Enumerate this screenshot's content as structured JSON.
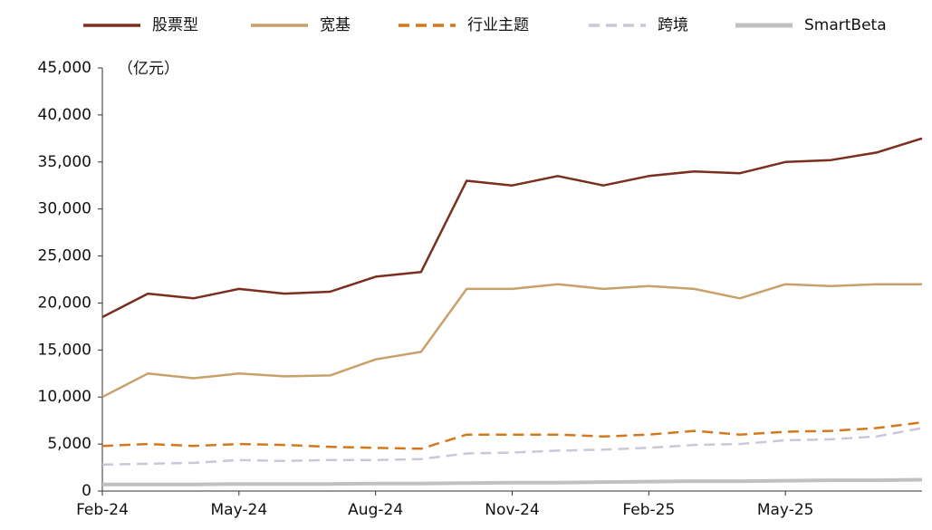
{
  "chart_data": {
    "type": "line",
    "y_unit": "（亿元）",
    "categories": [
      "Feb-24",
      null,
      null,
      "May-24",
      null,
      null,
      "Aug-24",
      null,
      null,
      "Nov-24",
      null,
      null,
      "Feb-25",
      null,
      null,
      "May-25",
      null,
      null,
      null
    ],
    "series": [
      {
        "name": "股票型",
        "color": "#7b2e1f",
        "dash": "solid",
        "values": [
          18500,
          21000,
          20500,
          21500,
          21000,
          21200,
          22800,
          23300,
          33000,
          32500,
          33500,
          32500,
          33500,
          34000,
          33800,
          35000,
          35200,
          36000,
          37500
        ]
      },
      {
        "name": "宽基",
        "color": "#c9a06a",
        "dash": "solid",
        "values": [
          10000,
          12500,
          12000,
          12500,
          12200,
          12300,
          14000,
          14800,
          21500,
          21500,
          22000,
          21500,
          21800,
          21500,
          20500,
          22000,
          21800,
          22000,
          22000
        ]
      },
      {
        "name": "行业主题",
        "color": "#d4781c",
        "dash": "dashed",
        "values": [
          4800,
          5000,
          4800,
          5000,
          4900,
          4700,
          4600,
          4500,
          6000,
          6000,
          6000,
          5800,
          6000,
          6400,
          6000,
          6300,
          6400,
          6700,
          7300
        ]
      },
      {
        "name": "跨境",
        "color": "#c8c8da",
        "dash": "dashed",
        "values": [
          2800,
          2900,
          3000,
          3300,
          3200,
          3300,
          3300,
          3400,
          4000,
          4100,
          4300,
          4400,
          4600,
          4900,
          5000,
          5400,
          5500,
          5800,
          6700
        ]
      },
      {
        "name": "SmartBeta",
        "color": "#c0c0c0",
        "dash": "solid",
        "values": [
          700,
          700,
          700,
          750,
          750,
          750,
          800,
          800,
          850,
          900,
          900,
          950,
          1000,
          1050,
          1050,
          1100,
          1150,
          1150,
          1200
        ]
      }
    ],
    "ylim": [
      0,
      45000
    ],
    "yticks": [
      0,
      {
        "value": 5000,
        "label": "5,000"
      },
      {
        "value": 10000,
        "label": "10,000"
      },
      {
        "value": 15000,
        "label": "15,000"
      },
      {
        "value": 20000,
        "label": "20,000"
      },
      {
        "value": 25000,
        "label": "25,000"
      },
      {
        "value": 30000,
        "label": "30,000"
      },
      {
        "value": 35000,
        "label": "35,000"
      },
      {
        "value": 40000,
        "label": "40,000"
      },
      {
        "value": 45000,
        "label": "45,000"
      }
    ],
    "grid": false,
    "legend": "top"
  }
}
